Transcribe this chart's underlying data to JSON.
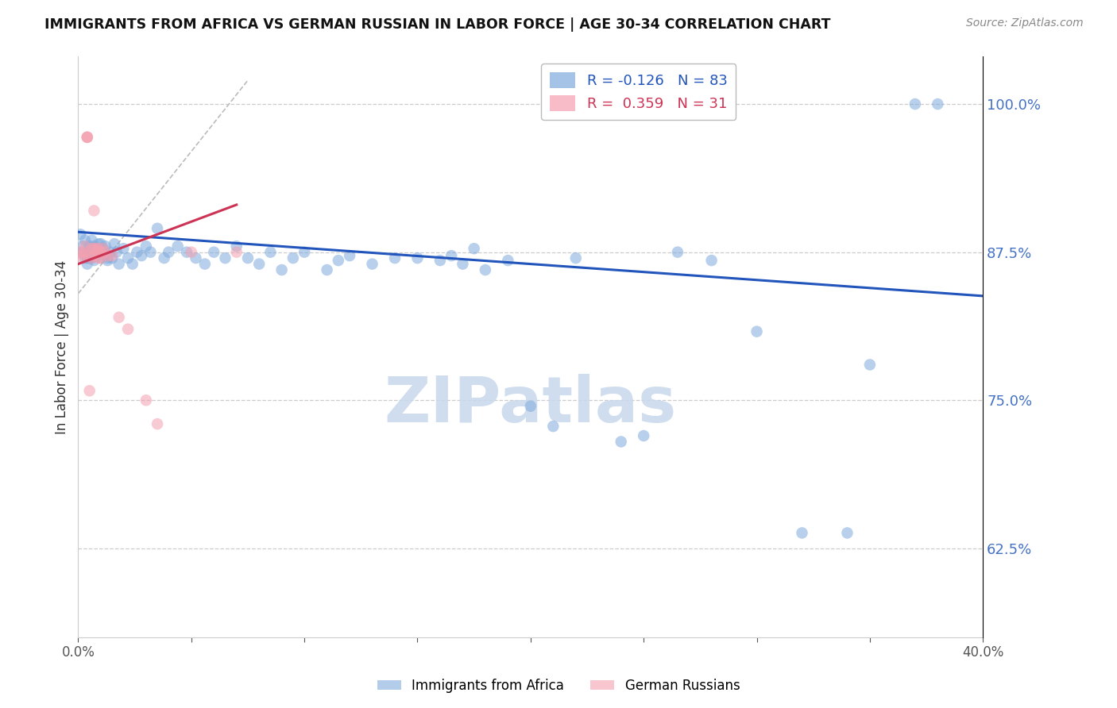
{
  "title": "IMMIGRANTS FROM AFRICA VS GERMAN RUSSIAN IN LABOR FORCE | AGE 30-34 CORRELATION CHART",
  "source": "Source: ZipAtlas.com",
  "ylabel": "In Labor Force | Age 30-34",
  "xlim": [
    0.0,
    0.4
  ],
  "ylim": [
    0.55,
    1.04
  ],
  "xticks": [
    0.0,
    0.05,
    0.1,
    0.15,
    0.2,
    0.25,
    0.3,
    0.35,
    0.4
  ],
  "yticks": [
    0.625,
    0.75,
    0.875,
    1.0
  ],
  "yticklabels": [
    "62.5%",
    "75.0%",
    "87.5%",
    "100.0%"
  ],
  "grid_color": "#cccccc",
  "background_color": "#ffffff",
  "blue_color": "#7faadd",
  "pink_color": "#f4a0b0",
  "blue_line_color": "#2255bb",
  "pink_line_color": "#cc3355",
  "blue_R": -0.126,
  "blue_N": 83,
  "pink_R": 0.359,
  "pink_N": 31,
  "watermark": "ZIPatlas",
  "watermark_color": "#c8d8ec",
  "blue_scatter_x": [
    0.001,
    0.002,
    0.002,
    0.003,
    0.003,
    0.004,
    0.004,
    0.004,
    0.005,
    0.005,
    0.005,
    0.006,
    0.006,
    0.006,
    0.007,
    0.007,
    0.007,
    0.008,
    0.008,
    0.009,
    0.009,
    0.01,
    0.01,
    0.01,
    0.011,
    0.011,
    0.012,
    0.012,
    0.013,
    0.013,
    0.014,
    0.015,
    0.016,
    0.017,
    0.018,
    0.02,
    0.022,
    0.024,
    0.026,
    0.028,
    0.03,
    0.032,
    0.035,
    0.038,
    0.04,
    0.044,
    0.048,
    0.052,
    0.056,
    0.06,
    0.065,
    0.07,
    0.075,
    0.08,
    0.085,
    0.09,
    0.095,
    0.1,
    0.11,
    0.115,
    0.12,
    0.13,
    0.14,
    0.15,
    0.16,
    0.165,
    0.17,
    0.175,
    0.18,
    0.19,
    0.2,
    0.21,
    0.22,
    0.24,
    0.25,
    0.265,
    0.28,
    0.3,
    0.32,
    0.34,
    0.35,
    0.37,
    0.38
  ],
  "blue_scatter_y": [
    0.89,
    0.875,
    0.88,
    0.87,
    0.885,
    0.875,
    0.87,
    0.865,
    0.88,
    0.875,
    0.87,
    0.885,
    0.875,
    0.87,
    0.88,
    0.875,
    0.868,
    0.878,
    0.872,
    0.882,
    0.876,
    0.87,
    0.875,
    0.882,
    0.878,
    0.873,
    0.88,
    0.875,
    0.87,
    0.868,
    0.875,
    0.87,
    0.882,
    0.875,
    0.865,
    0.878,
    0.87,
    0.865,
    0.875,
    0.872,
    0.88,
    0.875,
    0.895,
    0.87,
    0.875,
    0.88,
    0.875,
    0.87,
    0.865,
    0.875,
    0.87,
    0.88,
    0.87,
    0.865,
    0.875,
    0.86,
    0.87,
    0.875,
    0.86,
    0.868,
    0.872,
    0.865,
    0.87,
    0.87,
    0.868,
    0.872,
    0.865,
    0.878,
    0.86,
    0.868,
    0.745,
    0.728,
    0.87,
    0.715,
    0.72,
    0.875,
    0.868,
    0.808,
    0.638,
    0.638,
    0.78,
    1.0,
    1.0
  ],
  "pink_scatter_x": [
    0.001,
    0.002,
    0.002,
    0.003,
    0.003,
    0.004,
    0.004,
    0.004,
    0.005,
    0.005,
    0.006,
    0.006,
    0.007,
    0.007,
    0.007,
    0.008,
    0.008,
    0.009,
    0.009,
    0.01,
    0.01,
    0.011,
    0.012,
    0.013,
    0.015,
    0.018,
    0.022,
    0.03,
    0.035,
    0.05,
    0.07
  ],
  "pink_scatter_y": [
    0.875,
    0.873,
    0.87,
    0.88,
    0.875,
    0.972,
    0.972,
    0.972,
    0.758,
    0.872,
    0.878,
    0.87,
    0.91,
    0.878,
    0.872,
    0.878,
    0.875,
    0.87,
    0.878,
    0.875,
    0.87,
    0.878,
    0.875,
    0.872,
    0.872,
    0.82,
    0.81,
    0.75,
    0.73,
    0.875,
    0.875
  ]
}
